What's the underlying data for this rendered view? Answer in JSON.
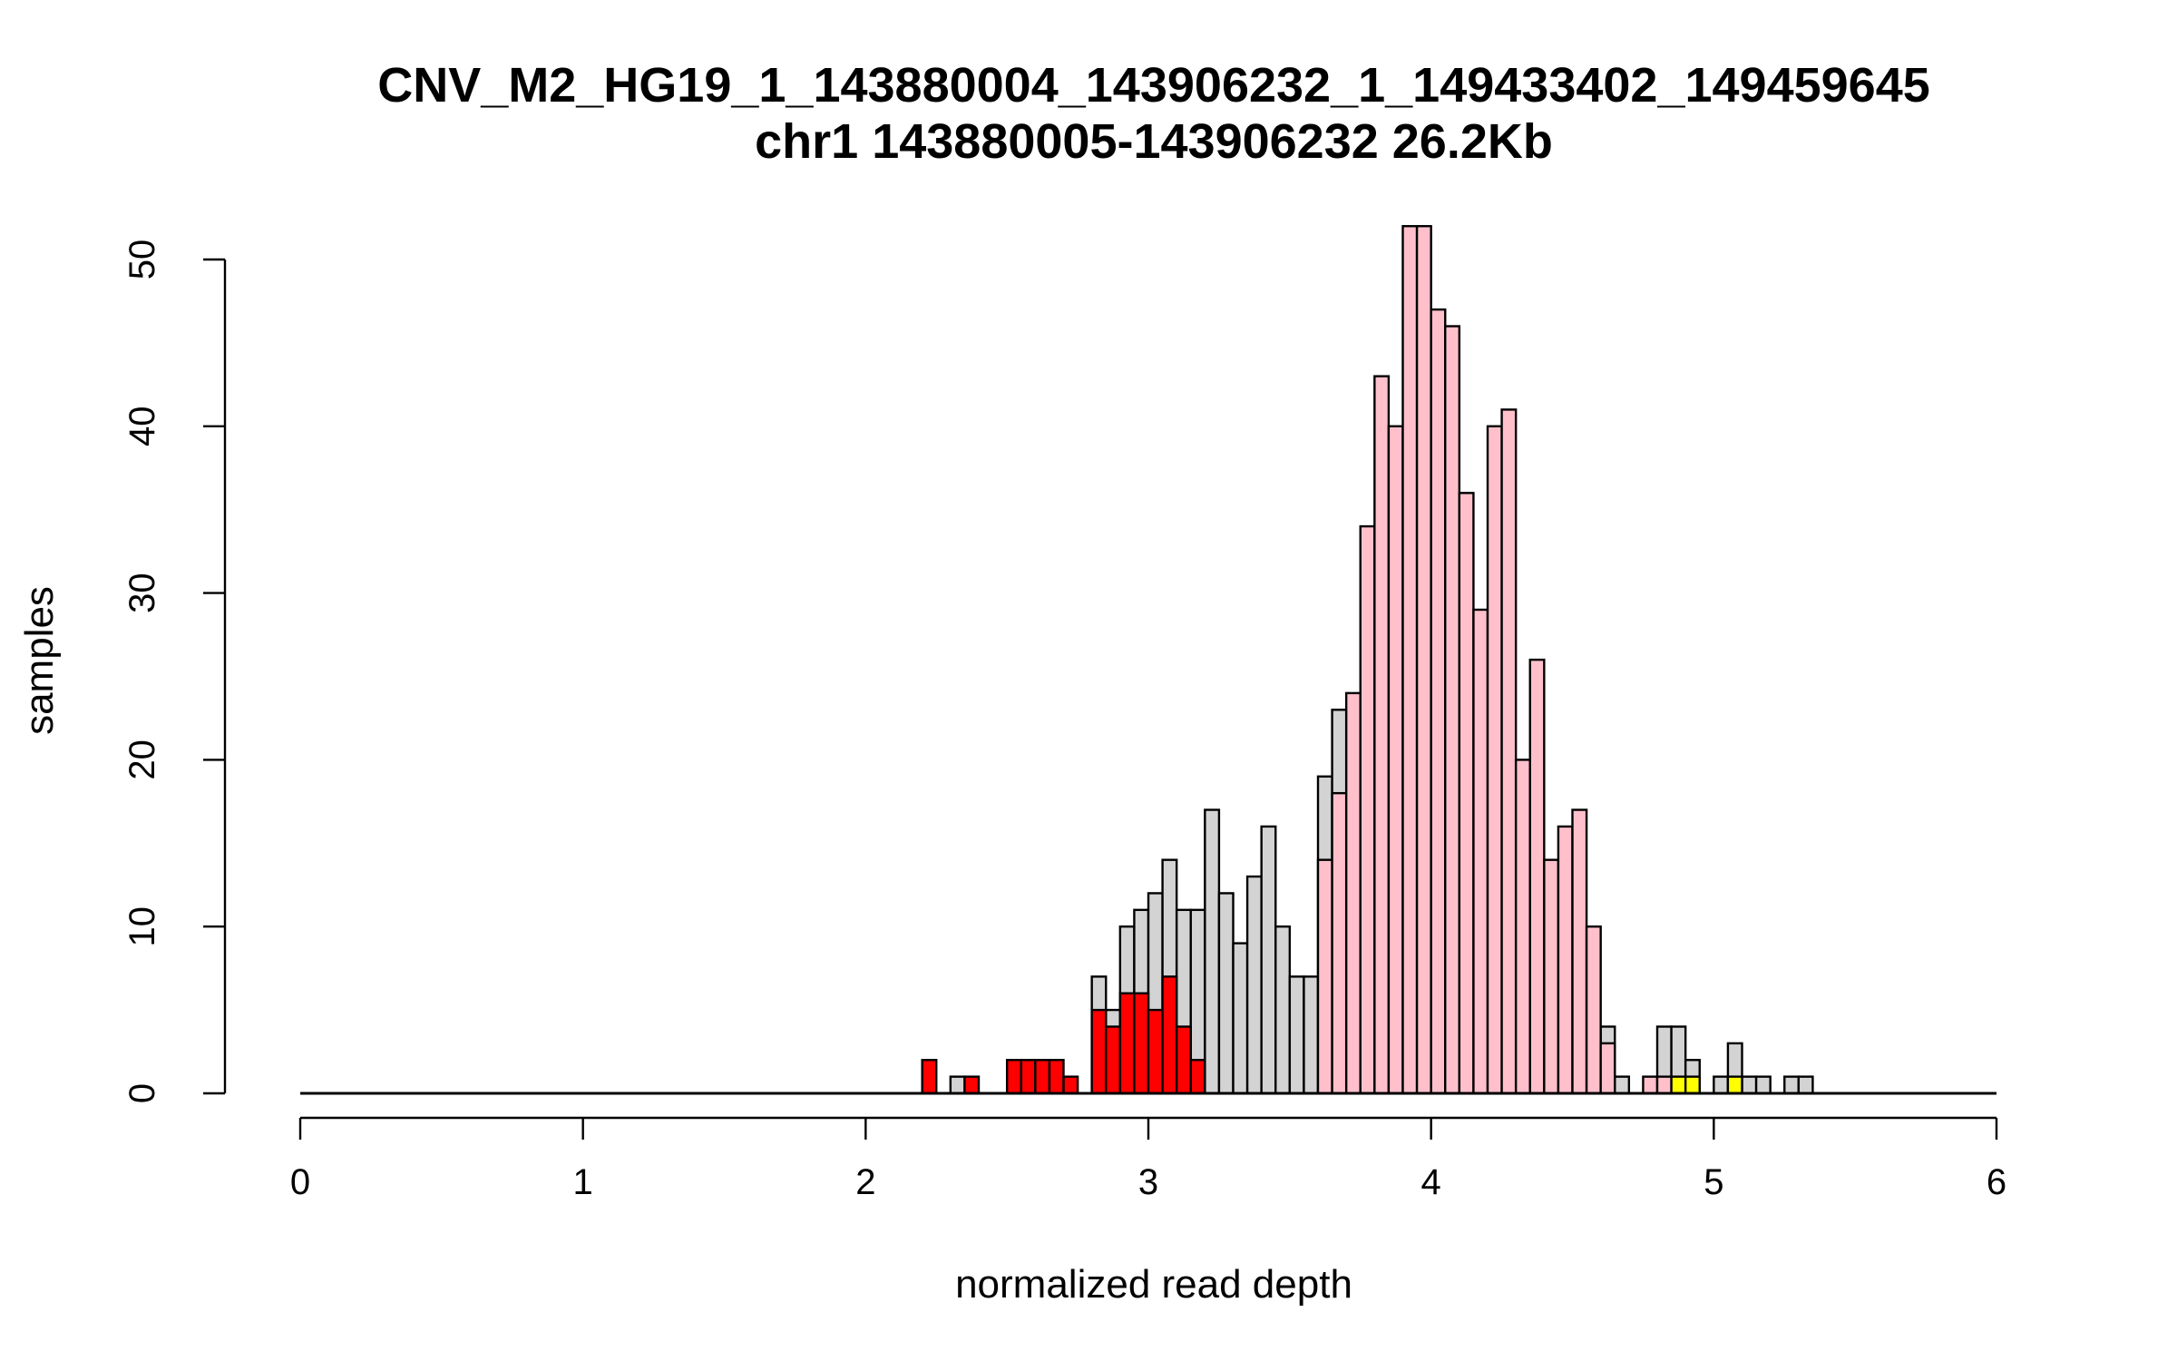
{
  "chart_data": {
    "type": "bar",
    "title": "CNV_M2_HG19_1_143880004_143906232_1_149433402_149459645",
    "subtitle": "chr1 143880005-143906232 26.2Kb",
    "xlabel": "normalized read depth",
    "ylabel": "samples",
    "xlim": [
      0,
      6
    ],
    "ylim": [
      0,
      52
    ],
    "x_ticks": [
      "0",
      "1",
      "2",
      "3",
      "4",
      "5",
      "6"
    ],
    "y_ticks": [
      "0",
      "10",
      "20",
      "30",
      "40",
      "50"
    ],
    "bin_width": 0.05,
    "colors": {
      "red": "#ff0000",
      "gray": "#d3d3d3",
      "pink": "#ffc0cb",
      "yellow": "#ffff00"
    },
    "series": [
      {
        "color": "gray",
        "bins": [
          [
            2.3,
            1
          ],
          [
            2.8,
            7
          ],
          [
            2.85,
            5
          ],
          [
            2.9,
            10
          ],
          [
            2.95,
            11
          ],
          [
            3.0,
            12
          ],
          [
            3.05,
            14
          ],
          [
            3.1,
            11
          ],
          [
            3.15,
            11
          ],
          [
            3.2,
            17
          ],
          [
            3.25,
            12
          ],
          [
            3.3,
            9
          ],
          [
            3.35,
            13
          ],
          [
            3.4,
            16
          ],
          [
            3.45,
            10
          ],
          [
            3.5,
            7
          ],
          [
            3.55,
            7
          ],
          [
            3.6,
            19
          ],
          [
            3.65,
            23
          ],
          [
            4.6,
            4
          ],
          [
            4.65,
            1
          ],
          [
            4.8,
            4
          ],
          [
            4.85,
            4
          ],
          [
            4.9,
            2
          ],
          [
            5.0,
            1
          ],
          [
            5.05,
            3
          ],
          [
            5.1,
            1
          ],
          [
            5.15,
            1
          ],
          [
            5.25,
            1
          ],
          [
            5.3,
            1
          ]
        ]
      },
      {
        "color": "pink",
        "bins": [
          [
            3.6,
            14
          ],
          [
            3.65,
            18
          ],
          [
            3.7,
            24
          ],
          [
            3.75,
            34
          ],
          [
            3.8,
            43
          ],
          [
            3.85,
            40
          ],
          [
            3.9,
            52
          ],
          [
            3.95,
            52
          ],
          [
            4.0,
            47
          ],
          [
            4.05,
            46
          ],
          [
            4.1,
            36
          ],
          [
            4.15,
            29
          ],
          [
            4.2,
            40
          ],
          [
            4.25,
            41
          ],
          [
            4.3,
            20
          ],
          [
            4.35,
            26
          ],
          [
            4.4,
            14
          ],
          [
            4.45,
            16
          ],
          [
            4.5,
            17
          ],
          [
            4.55,
            10
          ],
          [
            4.6,
            3
          ],
          [
            4.75,
            1
          ],
          [
            4.8,
            1
          ]
        ]
      },
      {
        "color": "red",
        "bins": [
          [
            2.2,
            2
          ],
          [
            2.35,
            1
          ],
          [
            2.5,
            2
          ],
          [
            2.55,
            2
          ],
          [
            2.6,
            2
          ],
          [
            2.65,
            2
          ],
          [
            2.7,
            1
          ],
          [
            2.8,
            5
          ],
          [
            2.85,
            4
          ],
          [
            2.9,
            6
          ],
          [
            2.95,
            6
          ],
          [
            3.0,
            5
          ],
          [
            3.05,
            7
          ],
          [
            3.1,
            4
          ],
          [
            3.15,
            2
          ]
        ]
      },
      {
        "color": "yellow",
        "bins": [
          [
            4.85,
            1
          ],
          [
            4.9,
            1
          ],
          [
            5.05,
            1
          ]
        ]
      }
    ]
  }
}
